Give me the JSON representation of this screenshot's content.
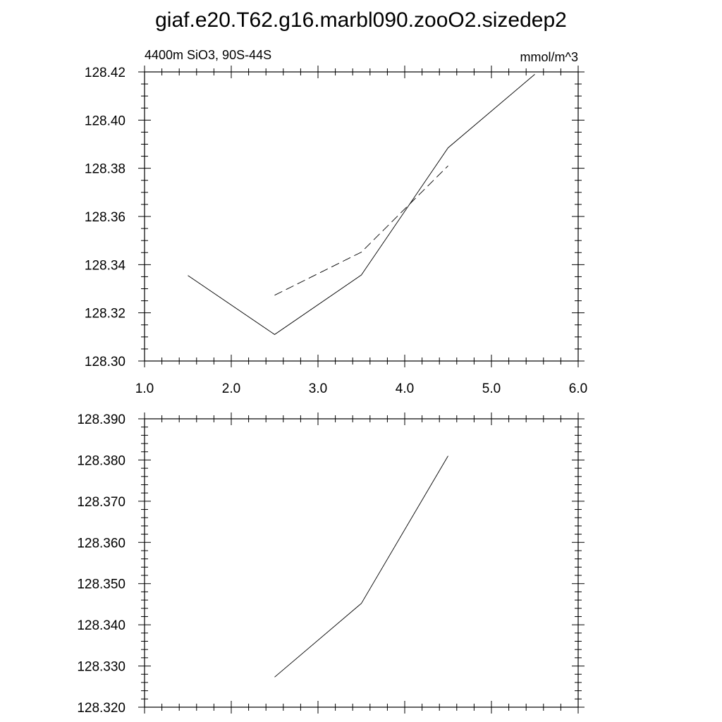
{
  "title": "giaf.e20.T62.g16.marbl090.zooO2.sizedep2",
  "chart_data": [
    {
      "type": "line",
      "left_label": "4400m SiO3, 90S-44S",
      "right_label": "mmol/m^3",
      "xlim": [
        1.0,
        6.0
      ],
      "ylim": [
        128.3,
        128.42
      ],
      "x_ticks": [
        "1.0",
        "2.0",
        "3.0",
        "4.0",
        "5.0",
        "6.0"
      ],
      "y_ticks": [
        "128.30",
        "128.32",
        "128.34",
        "128.36",
        "128.38",
        "128.40",
        "128.42"
      ],
      "grid": false,
      "series": [
        {
          "style": "solid",
          "color": "#000000",
          "x": [
            1.5,
            2.5,
            3.5,
            4.5,
            5.5
          ],
          "y": [
            128.3355,
            128.311,
            128.3357,
            128.3885,
            128.419
          ]
        },
        {
          "style": "dashed",
          "color": "#000000",
          "x": [
            2.5,
            3.5,
            4.5
          ],
          "y": [
            128.3273,
            128.3452,
            128.381
          ]
        }
      ]
    },
    {
      "type": "line",
      "xlim": [
        1.0,
        6.0
      ],
      "ylim": [
        128.32,
        128.39
      ],
      "y_ticks": [
        "128.320",
        "128.330",
        "128.340",
        "128.350",
        "128.360",
        "128.370",
        "128.380",
        "128.390"
      ],
      "grid": false,
      "series": [
        {
          "style": "solid",
          "color": "#000000",
          "x": [
            2.5,
            3.5,
            4.5
          ],
          "y": [
            128.3273,
            128.3452,
            128.381
          ]
        }
      ]
    }
  ]
}
